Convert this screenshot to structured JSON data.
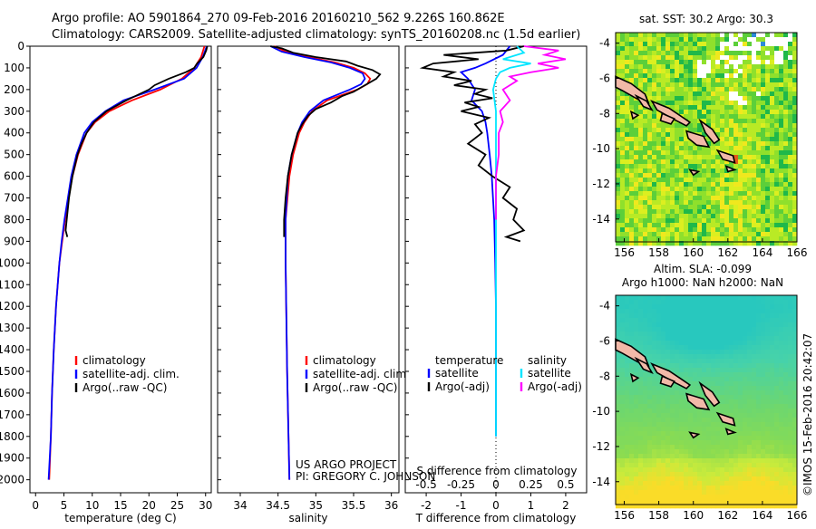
{
  "header": {
    "line1": "Argo profile: AO 5901864_270 09-Feb-2016 20160210_562 9.226S 160.862E",
    "line2": "Climatology: CARS2009. Satellite-adjusted climatology: synTS_20160208.nc (1.5d earlier)"
  },
  "colors": {
    "climatology": "#ff0000",
    "satellite": "#0000ff",
    "argo": "#000000",
    "sat_salinity": "#00e5ff",
    "argo_salinity": "#ff00ff",
    "land": "#f2b9a8"
  },
  "credits": {
    "line1": "US ARGO PROJECT",
    "line2": "PI: GREGORY C. JOHNSON"
  },
  "side_label": "©IMOS 15-Feb-2016 20:42:07",
  "chart_data": [
    {
      "id": "temperature",
      "type": "line",
      "xlabel": "temperature (deg C)",
      "ylabel": "",
      "xlim": [
        -1,
        31
      ],
      "ylim": [
        2060,
        0
      ],
      "xticks": [
        0,
        5,
        10,
        15,
        20,
        25,
        30
      ],
      "yticks": [
        0,
        100,
        200,
        300,
        400,
        500,
        600,
        700,
        800,
        900,
        1000,
        1100,
        1200,
        1300,
        1400,
        1500,
        1600,
        1700,
        1800,
        1900,
        2000
      ],
      "legend": [
        "climatology",
        "satellite-adj. clim.",
        "Argo(..raw -QC)"
      ],
      "series": [
        {
          "name": "climatology",
          "color_key": "climatology",
          "depth": [
            0,
            50,
            100,
            150,
            200,
            250,
            300,
            350,
            400,
            500,
            600,
            700,
            800,
            900,
            1000,
            1200,
            1400,
            1600,
            1800,
            2000
          ],
          "values": [
            29.8,
            29.2,
            28.0,
            25.8,
            22.0,
            17.0,
            13.0,
            10.5,
            9.0,
            7.5,
            6.5,
            5.8,
            5.2,
            4.7,
            4.2,
            3.6,
            3.2,
            2.9,
            2.7,
            2.4
          ]
        },
        {
          "name": "satellite-adj. clim.",
          "color_key": "satellite",
          "depth": [
            0,
            50,
            100,
            150,
            200,
            250,
            300,
            350,
            400,
            500,
            600,
            700,
            800,
            900,
            1000,
            1200,
            1400,
            1600,
            1800,
            2000
          ],
          "values": [
            30.2,
            29.5,
            28.4,
            26.2,
            21.0,
            15.5,
            12.3,
            10.0,
            8.6,
            7.2,
            6.3,
            5.7,
            5.1,
            4.6,
            4.2,
            3.6,
            3.2,
            2.9,
            2.7,
            2.3
          ]
        },
        {
          "name": "Argo(..raw -QC)",
          "color_key": "argo",
          "depth": [
            0,
            20,
            50,
            80,
            100,
            120,
            150,
            180,
            200,
            250,
            300,
            350,
            400,
            450,
            500,
            600,
            700,
            800,
            850,
            880
          ],
          "values": [
            30.3,
            30.1,
            29.6,
            28.5,
            28.0,
            26.5,
            23.5,
            21.0,
            20.0,
            16.0,
            12.5,
            10.3,
            9.0,
            8.1,
            7.4,
            6.5,
            5.9,
            5.5,
            5.3,
            5.6
          ]
        }
      ]
    },
    {
      "id": "salinity",
      "type": "line",
      "xlabel": "salinity",
      "ylabel": "",
      "xlim": [
        33.7,
        36.1
      ],
      "ylim": [
        2060,
        0
      ],
      "xticks": [
        34,
        34.5,
        35,
        35.5,
        36
      ],
      "legend": [
        "climatology",
        "satellite-adj. clim.",
        "Argo(..raw -QC)"
      ],
      "series": [
        {
          "name": "climatology",
          "color_key": "climatology",
          "depth": [
            0,
            25,
            50,
            75,
            100,
            125,
            150,
            175,
            200,
            250,
            300,
            350,
            400,
            500,
            600,
            800,
            1000,
            1500,
            2000
          ],
          "values": [
            34.45,
            34.6,
            34.9,
            35.25,
            35.5,
            35.65,
            35.72,
            35.68,
            35.55,
            35.15,
            34.95,
            34.85,
            34.78,
            34.7,
            34.65,
            34.6,
            34.6,
            34.62,
            34.65
          ]
        },
        {
          "name": "satellite-adj. clim.",
          "color_key": "satellite",
          "depth": [
            0,
            25,
            50,
            75,
            100,
            125,
            150,
            175,
            200,
            250,
            300,
            350,
            400,
            500,
            600,
            800,
            1000,
            1500,
            2000
          ],
          "values": [
            34.4,
            34.55,
            34.85,
            35.2,
            35.45,
            35.62,
            35.65,
            35.6,
            35.45,
            35.1,
            34.92,
            34.82,
            34.76,
            34.68,
            34.63,
            34.6,
            34.6,
            34.62,
            34.65
          ]
        },
        {
          "name": "Argo(..raw -QC)",
          "color_key": "argo",
          "depth": [
            0,
            10,
            30,
            50,
            70,
            90,
            110,
            130,
            150,
            170,
            190,
            210,
            230,
            260,
            290,
            320,
            360,
            400,
            450,
            500,
            600,
            700,
            800,
            880
          ],
          "values": [
            34.4,
            34.55,
            34.7,
            35.0,
            35.4,
            35.55,
            35.75,
            35.85,
            35.8,
            35.7,
            35.6,
            35.5,
            35.35,
            35.2,
            35.0,
            34.9,
            34.82,
            34.76,
            34.72,
            34.68,
            34.63,
            34.6,
            34.58,
            34.58
          ]
        }
      ]
    },
    {
      "id": "difference",
      "type": "line",
      "xlabel": "T difference from climatology",
      "xlabel_top": "S difference from climatology",
      "xlim": [
        -2.6,
        2.6
      ],
      "ylim": [
        2060,
        0
      ],
      "xticks": [
        -2,
        -1,
        0,
        1,
        2
      ],
      "xticks_top": [
        -0.5,
        -0.25,
        0,
        0.25,
        0.5
      ],
      "xticklabels_top": [
        "-0.5",
        "-0.25",
        "0",
        "0.25",
        "0.5"
      ],
      "legend_titles": [
        "temperature",
        "salinity"
      ],
      "legend": [
        "satellite",
        "Argo(-adj)",
        "satellite",
        "Argo(-adj)"
      ],
      "series": [
        {
          "name": "temperature satellite",
          "color_key": "satellite",
          "depth": [
            0,
            40,
            80,
            100,
            120,
            150,
            200,
            250,
            300,
            350,
            400,
            500,
            600,
            800,
            1000,
            1200,
            1400,
            1600,
            1800
          ],
          "values": [
            0.4,
            0.2,
            -0.3,
            -0.6,
            -1.0,
            -0.8,
            -0.6,
            -0.7,
            -0.4,
            -0.3,
            -0.25,
            -0.18,
            -0.12,
            -0.05,
            -0.02,
            0,
            0,
            0,
            0
          ]
        },
        {
          "name": "temperature Argo(-adj)",
          "color_key": "argo",
          "depth": [
            0,
            20,
            40,
            60,
            80,
            100,
            120,
            140,
            160,
            180,
            200,
            220,
            240,
            260,
            280,
            300,
            330,
            360,
            400,
            450,
            500,
            550,
            600,
            650,
            700,
            750,
            800,
            850,
            880,
            900
          ],
          "values": [
            0.8,
            0.3,
            -1.5,
            -0.5,
            -1.8,
            -2.1,
            -1.2,
            -1.5,
            -0.7,
            -1.2,
            -0.3,
            -0.6,
            -0.1,
            -0.9,
            -0.5,
            -1.0,
            -0.2,
            -0.6,
            -0.4,
            -0.8,
            -0.3,
            -0.5,
            -0.1,
            0.4,
            0.2,
            0.6,
            0.5,
            0.8,
            0.3,
            0.7
          ]
        },
        {
          "name": "salinity satellite",
          "color_key": "sat_salinity",
          "depth": [
            0,
            30,
            60,
            80,
            100,
            120,
            150,
            200,
            300,
            400,
            600,
            1000,
            1400,
            1800
          ],
          "values": [
            0.15,
            0.2,
            0.05,
            0.25,
            0.1,
            0.03,
            0.0,
            -0.02,
            0.0,
            0.0,
            0.0,
            0.0,
            0.0,
            0.0
          ]
        },
        {
          "name": "salinity Argo(-adj)",
          "color_key": "argo_salinity",
          "depth": [
            0,
            20,
            40,
            60,
            80,
            100,
            120,
            140,
            160,
            200,
            250,
            300,
            350,
            400,
            500,
            600,
            800
          ],
          "values": [
            0.2,
            0.45,
            0.35,
            0.5,
            0.3,
            0.45,
            0.25,
            0.1,
            0.15,
            0.05,
            0.1,
            0.03,
            0.05,
            0.02,
            0.02,
            0.0,
            0.0
          ]
        }
      ]
    },
    {
      "id": "sst_map",
      "type": "heatmap",
      "title": "sat. SST: 30.2 Argo: 30.3",
      "xticks": [
        156,
        158,
        160,
        162,
        164,
        166
      ],
      "yticks": [
        -4,
        -6,
        -8,
        -10,
        -12,
        -14
      ],
      "xlim": [
        155.5,
        166
      ],
      "ylim": [
        -15.3,
        -3.4
      ],
      "argo_position": {
        "lon": 160.862,
        "lat": -9.226
      }
    },
    {
      "id": "sla_map",
      "type": "heatmap",
      "title": "Altim. SLA: -0.099",
      "subtitle": "Argo h1000: NaN h2000: NaN",
      "xticks": [
        156,
        158,
        160,
        162,
        164,
        166
      ],
      "yticks": [
        -4,
        -6,
        -8,
        -10,
        -12,
        -14
      ],
      "xlim": [
        155.5,
        166
      ],
      "ylim": [
        -15.3,
        -3.4
      ],
      "argo_position": {
        "lon": 160.862,
        "lat": -9.226
      }
    }
  ]
}
